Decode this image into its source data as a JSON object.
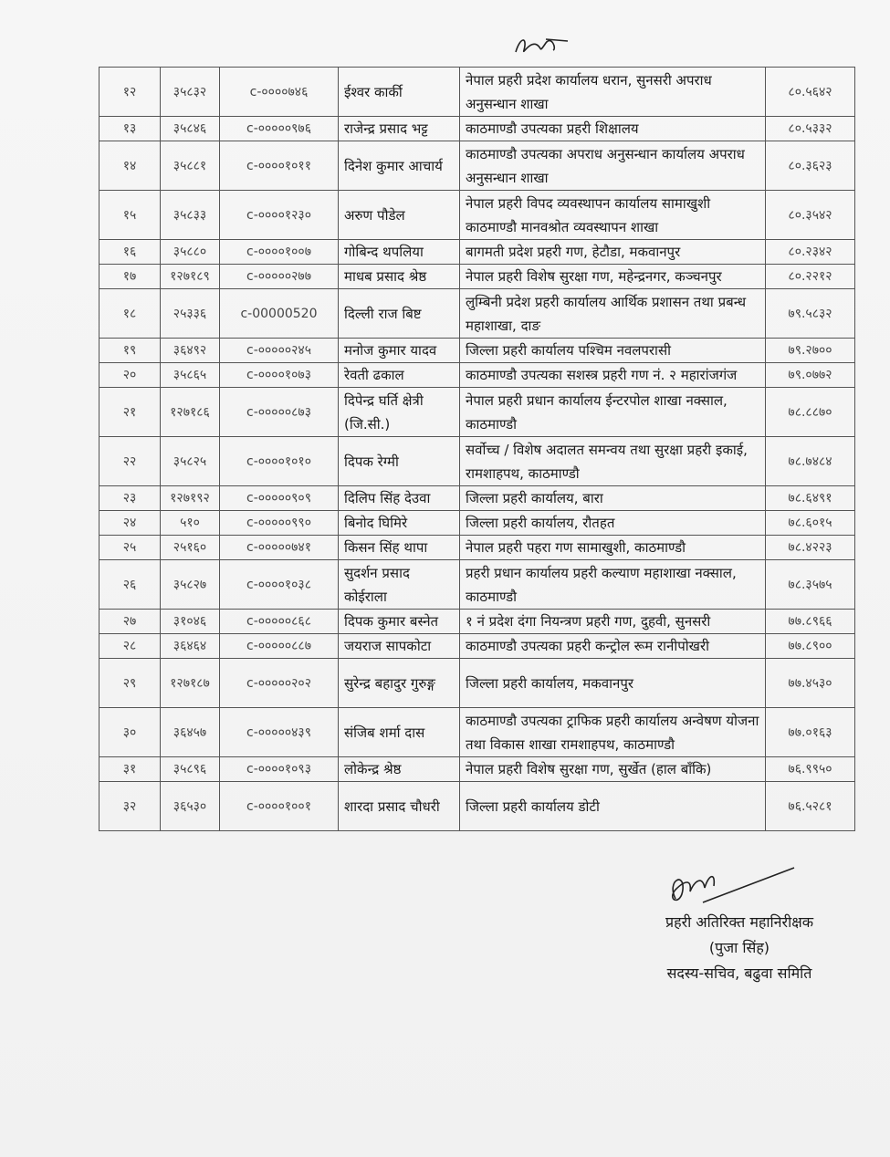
{
  "rows": [
    {
      "sn": "१२",
      "id": "३५८३२",
      "code": "c-००००७४६",
      "name": "ईश्वर कार्की",
      "office": "नेपाल प्रहरी प्रदेश कार्यालय धरान, सुनसरी अपराध अनुसन्धान शाखा",
      "score": "८०.५६४२",
      "tall": true
    },
    {
      "sn": "१३",
      "id": "३५८४६",
      "code": "c-०००००९७६",
      "name": "राजेन्द्र प्रसाद भट्ट",
      "office": "काठमाण्डौ उपत्यका प्रहरी शिक्षालय",
      "score": "८०.५३३२",
      "tall": false
    },
    {
      "sn": "१४",
      "id": "३५८८१",
      "code": "c-००००१०११",
      "name": "दिनेश कुमार आचार्य",
      "office": "काठमाण्डौ उपत्यका अपराध अनुसन्धान कार्यालय अपराध अनुसन्धान शाखा",
      "score": "८०.३६२३",
      "tall": true
    },
    {
      "sn": "१५",
      "id": "३५८३३",
      "code": "c-००००१२३०",
      "name": "अरुण पौडेल",
      "office": "नेपाल प्रहरी विपद व्यवस्थापन कार्यालय सामाखुशी काठमाण्डौ मानवश्रोत व्यवस्थापन शाखा",
      "score": "८०.३५४२",
      "tall": true
    },
    {
      "sn": "१६",
      "id": "३५८८०",
      "code": "c-००००१००७",
      "name": "गोबिन्द थपलिया",
      "office": "बागमती प्रदेश प्रहरी गण, हेटौडा, मकवानपुर",
      "score": "८०.२३४२",
      "tall": false
    },
    {
      "sn": "१७",
      "id": "१२७१८९",
      "code": "c-०००००२७७",
      "name": "माधब प्रसाद श्रेष्ठ",
      "office": "नेपाल प्रहरी विशेष सुरक्षा गण, महेन्द्रनगर, कञ्चनपुर",
      "score": "८०.२२१२",
      "tall": false
    },
    {
      "sn": "१८",
      "id": "२५३३६",
      "code": "c-00000520",
      "name": "दिल्ली राज बिष्ट",
      "office": "लुम्बिनी प्रदेश प्रहरी कार्यालय आर्थिक प्रशासन तथा प्रबन्ध महाशाखा, दाङ",
      "score": "७९.५८३२",
      "tall": true
    },
    {
      "sn": "१९",
      "id": "३६४९२",
      "code": "c-०००००२४५",
      "name": "मनोज कुमार यादव",
      "office": "जिल्ला प्रहरी कार्यालय पश्चिम नवलपरासी",
      "score": "७९.२७००",
      "tall": false
    },
    {
      "sn": "२०",
      "id": "३५८६५",
      "code": "c-००००१०७३",
      "name": "रेवती ढकाल",
      "office": "काठमाण्डौ उपत्यका सशस्त्र प्रहरी गण नं. २ महारांजगंज",
      "score": "७९.०७७२",
      "tall": false
    },
    {
      "sn": "२१",
      "id": "१२७१८६",
      "code": "c-०००००८७३",
      "name": "दिपेन्द्र घर्ति क्षेत्री (जि.सी.)",
      "office": "नेपाल प्रहरी प्रधान कार्यालय ईन्टरपोल शाखा नक्साल, काठमाण्डौ",
      "score": "७८.८८७०",
      "tall": true
    },
    {
      "sn": "२२",
      "id": "३५८२५",
      "code": "c-००००१०१०",
      "name": "दिपक रेग्मी",
      "office": "सर्वोच्च / विशेष अदालत समन्वय तथा सुरक्षा प्रहरी इकाई, रामशाहपथ, काठमाण्डौ",
      "score": "७८.७४८४",
      "tall": true
    },
    {
      "sn": "२३",
      "id": "१२७१९२",
      "code": "c-०००००९०९",
      "name": "दिलिप सिंह देउवा",
      "office": "जिल्ला प्रहरी कार्यालय, बारा",
      "score": "७८.६४९१",
      "tall": false
    },
    {
      "sn": "२४",
      "id": "५१०",
      "code": "c-०००००९९०",
      "name": "बिनोद घिमिरे",
      "office": "जिल्ला प्रहरी कार्यालय, रौतहत",
      "score": "७८.६०१५",
      "tall": false
    },
    {
      "sn": "२५",
      "id": "२५१६०",
      "code": "c-०००००७४१",
      "name": "किसन सिंह थापा",
      "office": "नेपाल प्रहरी पहरा गण सामाखुशी, काठमाण्डौ",
      "score": "७८.४२२३",
      "tall": false
    },
    {
      "sn": "२६",
      "id": "३५८२७",
      "code": "c-००००१०३८",
      "name": "सुदर्शन प्रसाद कोईराला",
      "office": "प्रहरी प्रधान कार्यालय प्रहरी कल्याण महाशाखा नक्साल, काठमाण्डौ",
      "score": "७८.३५७५",
      "tall": true
    },
    {
      "sn": "२७",
      "id": "३१०४६",
      "code": "c-०००००८६८",
      "name": "दिपक कुमार बस्नेत",
      "office": "१ नं प्रदेश दंगा नियन्त्रण प्रहरी गण, दुहवी, सुनसरी",
      "score": "७७.८९६६",
      "tall": false
    },
    {
      "sn": "२८",
      "id": "३६४६४",
      "code": "c-०००००८८७",
      "name": "जयराज सापकोटा",
      "office": "काठमाण्डौ उपत्यका प्रहरी कन्ट्रोल रूम रानीपोखरी",
      "score": "७७.८९००",
      "tall": false
    },
    {
      "sn": "२९",
      "id": "१२७१८७",
      "code": "c-०००००२०२",
      "name": "सुरेन्द्र बहादुर गुरुङ्ग",
      "office": "जिल्ला प्रहरी कार्यालय, मकवानपुर",
      "score": "७७.४५३०",
      "tall": true
    },
    {
      "sn": "३०",
      "id": "३६४५७",
      "code": "c-०००००४३९",
      "name": "संजिब शर्मा दास",
      "office": "काठमाण्डौ उपत्यका ट्राफिक प्रहरी कार्यालय अन्वेषण योजना तथा विकास शाखा रामशाहपथ, काठमाण्डौ",
      "score": "७७.०१६३",
      "tall": true
    },
    {
      "sn": "३१",
      "id": "३५८९६",
      "code": "c-००००१०९३",
      "name": "लोकेन्द्र श्रेष्ठ",
      "office": "नेपाल प्रहरी विशेष सुरक्षा गण,  सुर्खेत (हाल  बाँकि)",
      "score": "७६.९९५०",
      "tall": false
    },
    {
      "sn": "३२",
      "id": "३६५३०",
      "code": "c-००००१००१",
      "name": "शारदा प्रसाद चौधरी",
      "office": "जिल्ला प्रहरी कार्यालय डोटी",
      "score": "७६.५२८१",
      "tall": true
    }
  ],
  "signatory": {
    "title": "प्रहरी अतिरिक्त महानिरीक्षक",
    "name": "(पुजा सिंह)",
    "role": "सदस्य-सचिव, बढुवा समिति"
  }
}
